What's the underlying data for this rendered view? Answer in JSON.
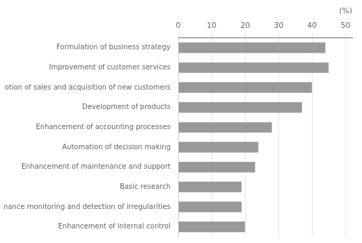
{
  "chart_data": {
    "type": "bar",
    "orientation": "horizontal",
    "categories": [
      "Enhancement of internal control",
      "Performance monitoring and detection of irregularities",
      "Basic research",
      "Enhancement of maintenance and support",
      "Automation of decision making",
      "Enhancement of accounting processes",
      "Development of products",
      "Promotion of sales and acquisition of new customers",
      "Improvement of customer services",
      "Formulation of business strategy"
    ],
    "values": [
      20,
      19,
      19,
      23,
      24,
      28,
      37,
      40,
      45,
      44
    ],
    "color": "#999999",
    "xlabel": "(%)",
    "xlim": [
      0,
      52
    ],
    "xticks": [
      0,
      10,
      20,
      30,
      40,
      50
    ],
    "grid": true
  }
}
